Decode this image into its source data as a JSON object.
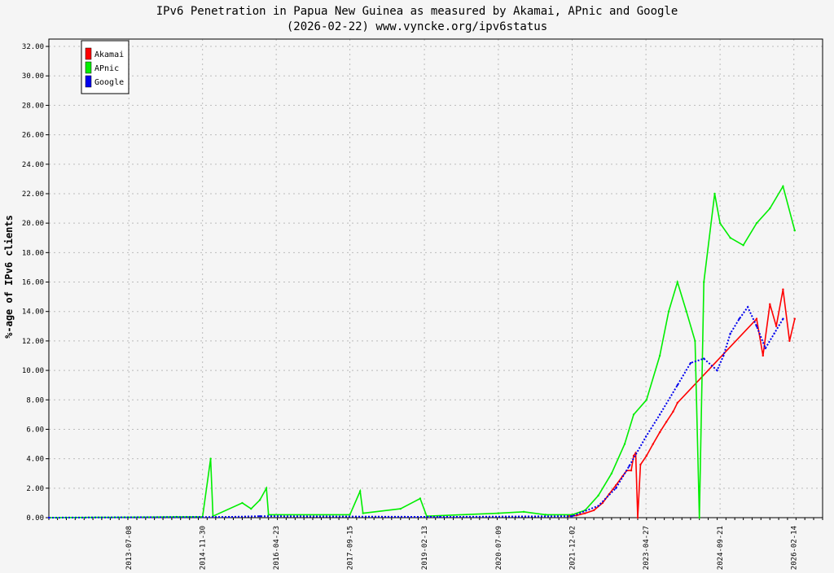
{
  "chart_data": {
    "type": "line",
    "title": "IPv6 Penetration in Papua New Guinea as measured by Akamai, APnic and Google",
    "subtitle": "(2026-02-22) www.vyncke.org/ipv6status",
    "xlabel": "",
    "ylabel": "%-age of IPv6 clients",
    "ylim": [
      0,
      32.5
    ],
    "xlim": [
      "2012-01-01",
      "2026-09-01"
    ],
    "grid": true,
    "legend_position": "top-left",
    "y_ticks": [
      "0.00",
      "2.00",
      "4.00",
      "6.00",
      "8.00",
      "10.00",
      "12.00",
      "14.00",
      "16.00",
      "18.00",
      "20.00",
      "22.00",
      "24.00",
      "26.00",
      "28.00",
      "30.00",
      "32.00"
    ],
    "x_ticks": [
      "2013-07-08",
      "2014-11-30",
      "2016-04-23",
      "2017-09-15",
      "2019-02-13",
      "2020-07-09",
      "2021-12-02",
      "2023-04-27",
      "2024-09-21",
      "2026-02-14"
    ],
    "series": [
      {
        "name": "Akamai",
        "color": "#ff0000",
        "points": [
          [
            "2021-11-01",
            0.1
          ],
          [
            "2022-01-01",
            0.15
          ],
          [
            "2022-03-01",
            0.3
          ],
          [
            "2022-05-01",
            0.5
          ],
          [
            "2022-07-01",
            1.0
          ],
          [
            "2022-08-15",
            1.6
          ],
          [
            "2022-10-01",
            2.2
          ],
          [
            "2022-11-15",
            2.8
          ],
          [
            "2022-12-15",
            3.2
          ],
          [
            "2023-01-15",
            3.2
          ],
          [
            "2023-02-01",
            4.2
          ],
          [
            "2023-02-15",
            4.4
          ],
          [
            "2023-03-01",
            0.0
          ],
          [
            "2023-03-20",
            3.6
          ],
          [
            "2023-05-01",
            4.2
          ],
          [
            "2023-06-15",
            5.0
          ],
          [
            "2023-08-01",
            5.8
          ],
          [
            "2023-09-15",
            6.5
          ],
          [
            "2023-11-01",
            7.2
          ],
          [
            "2023-12-01",
            7.8
          ],
          [
            "2025-06-01",
            13.5
          ],
          [
            "2025-07-15",
            11.0
          ],
          [
            "2025-09-01",
            14.5
          ],
          [
            "2025-10-15",
            13.0
          ],
          [
            "2025-12-01",
            15.5
          ],
          [
            "2026-01-15",
            12.0
          ],
          [
            "2026-02-20",
            13.5
          ]
        ]
      },
      {
        "name": "APnic",
        "color": "#00ee00",
        "points": [
          [
            "2012-01-01",
            0.0
          ],
          [
            "2014-06-01",
            0.05
          ],
          [
            "2014-11-30",
            0.05
          ],
          [
            "2015-01-25",
            4.0
          ],
          [
            "2015-02-10",
            0.1
          ],
          [
            "2015-09-01",
            1.0
          ],
          [
            "2015-11-01",
            0.6
          ],
          [
            "2016-01-01",
            1.2
          ],
          [
            "2016-02-15",
            2.0
          ],
          [
            "2016-03-01",
            0.2
          ],
          [
            "2017-09-15",
            0.2
          ],
          [
            "2017-11-25",
            1.8
          ],
          [
            "2017-12-15",
            0.3
          ],
          [
            "2018-09-01",
            0.6
          ],
          [
            "2019-01-15",
            1.3
          ],
          [
            "2019-03-01",
            0.1
          ],
          [
            "2020-07-09",
            0.3
          ],
          [
            "2021-01-01",
            0.4
          ],
          [
            "2021-06-01",
            0.2
          ],
          [
            "2021-12-02",
            0.2
          ],
          [
            "2022-03-01",
            0.5
          ],
          [
            "2022-06-01",
            1.5
          ],
          [
            "2022-09-01",
            3.0
          ],
          [
            "2022-12-01",
            5.0
          ],
          [
            "2023-02-01",
            7.0
          ],
          [
            "2023-05-01",
            8.0
          ],
          [
            "2023-08-01",
            11.0
          ],
          [
            "2023-10-01",
            14.0
          ],
          [
            "2023-12-01",
            16.0
          ],
          [
            "2024-02-01",
            14.0
          ],
          [
            "2024-04-01",
            12.0
          ],
          [
            "2024-05-01",
            0.0
          ],
          [
            "2024-06-01",
            16.0
          ],
          [
            "2024-08-15",
            22.0
          ],
          [
            "2024-09-21",
            20.0
          ],
          [
            "2024-12-01",
            19.0
          ],
          [
            "2025-03-01",
            18.5
          ],
          [
            "2025-06-01",
            20.0
          ],
          [
            "2025-09-01",
            21.0
          ],
          [
            "2025-12-01",
            22.5
          ],
          [
            "2026-02-20",
            19.5
          ]
        ]
      },
      {
        "name": "Google",
        "color": "#0000ee",
        "points": [
          [
            "2012-01-01",
            0.0
          ],
          [
            "2015-06-01",
            0.05
          ],
          [
            "2016-01-01",
            0.1
          ],
          [
            "2019-06-01",
            0.05
          ],
          [
            "2021-12-02",
            0.1
          ],
          [
            "2022-06-01",
            0.8
          ],
          [
            "2022-10-01",
            2.0
          ],
          [
            "2023-01-01",
            3.5
          ],
          [
            "2023-04-27",
            5.5
          ],
          [
            "2023-08-01",
            7.0
          ],
          [
            "2023-12-01",
            9.0
          ],
          [
            "2024-03-01",
            10.5
          ],
          [
            "2024-06-01",
            10.8
          ],
          [
            "2024-09-01",
            10.0
          ],
          [
            "2024-10-15",
            11.0
          ],
          [
            "2024-12-01",
            12.5
          ],
          [
            "2025-02-01",
            13.5
          ],
          [
            "2025-04-01",
            14.3
          ],
          [
            "2025-06-01",
            13.0
          ],
          [
            "2025-08-01",
            11.5
          ],
          [
            "2025-10-01",
            12.5
          ],
          [
            "2025-12-01",
            13.5
          ]
        ]
      }
    ]
  }
}
